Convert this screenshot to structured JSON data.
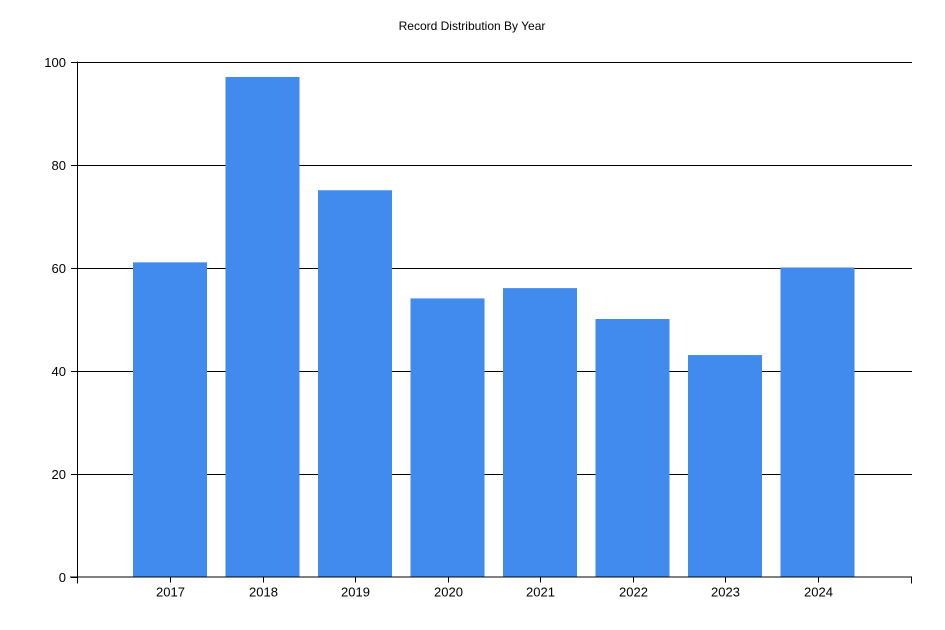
{
  "chart_data": {
    "type": "bar",
    "title": "Record Distribution By Year",
    "xlabel": "",
    "ylabel": "",
    "categories": [
      "2017",
      "2018",
      "2019",
      "2020",
      "2021",
      "2022",
      "2023",
      "2024"
    ],
    "values": [
      61,
      97,
      75,
      54,
      56,
      50,
      43,
      60
    ],
    "ylim": [
      0,
      100
    ],
    "yticks": [
      0,
      20,
      40,
      60,
      80,
      100
    ],
    "ytick_labels": [
      "0",
      "20",
      "40",
      "60",
      "80",
      "100"
    ],
    "grid": true,
    "legend": "none",
    "bar_color": "#418AEE",
    "grid_color": "#000000"
  }
}
